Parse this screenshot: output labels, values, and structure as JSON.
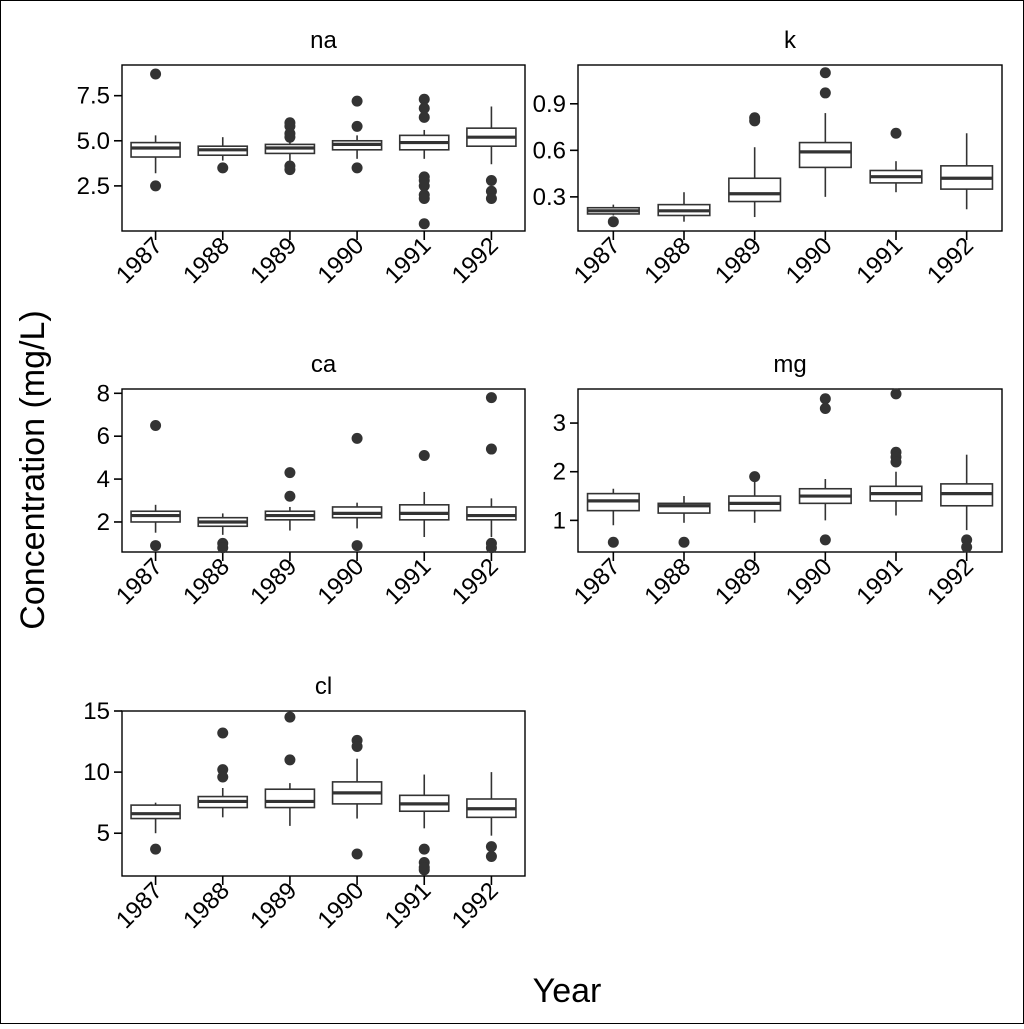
{
  "colors": {
    "box_fill": "#ffffff",
    "box_stroke": "#333333",
    "outlier": "#333333",
    "axis": "#000000",
    "background": "#ffffff"
  },
  "figure": {
    "xlabel": "Year",
    "ylabel": "Concentration (mg/L)"
  },
  "chart_data": [
    {
      "type": "box",
      "title": "na",
      "xlabel": "",
      "ylabel": "",
      "categories": [
        "1987",
        "1988",
        "1989",
        "1990",
        "1991",
        "1992"
      ],
      "ylim": [
        0.0,
        9.2
      ],
      "yticks": [
        2.5,
        5.0,
        7.5
      ],
      "ytick_labels": [
        "2.5",
        "5.0",
        "7.5"
      ],
      "grid": false,
      "legend": "none",
      "boxes": [
        {
          "x": "1987",
          "whislo": 3.2,
          "q1": 4.1,
          "med": 4.6,
          "q3": 4.9,
          "whishi": 5.3,
          "fliers": [
            8.7,
            2.5
          ]
        },
        {
          "x": "1988",
          "whislo": 3.9,
          "q1": 4.2,
          "med": 4.5,
          "q3": 4.7,
          "whishi": 5.2,
          "fliers": [
            3.5
          ]
        },
        {
          "x": "1989",
          "whislo": 3.9,
          "q1": 4.3,
          "med": 4.6,
          "q3": 4.8,
          "whishi": 5.1,
          "fliers": [
            6.0,
            5.8,
            5.4,
            5.2,
            3.6,
            3.4
          ]
        },
        {
          "x": "1990",
          "whislo": 4.0,
          "q1": 4.5,
          "med": 4.8,
          "q3": 5.0,
          "whishi": 5.3,
          "fliers": [
            7.2,
            5.8,
            3.5
          ]
        },
        {
          "x": "1991",
          "whislo": 4.0,
          "q1": 4.5,
          "med": 4.9,
          "q3": 5.3,
          "whishi": 5.6,
          "fliers": [
            7.3,
            6.8,
            6.3,
            3.0,
            2.8,
            2.5,
            2.0,
            1.8,
            0.4
          ]
        },
        {
          "x": "1992",
          "whislo": 3.7,
          "q1": 4.7,
          "med": 5.2,
          "q3": 5.7,
          "whishi": 6.9,
          "fliers": [
            2.8,
            2.2,
            1.8
          ]
        }
      ]
    },
    {
      "type": "box",
      "title": "k",
      "xlabel": "",
      "ylabel": "",
      "categories": [
        "1987",
        "1988",
        "1989",
        "1990",
        "1991",
        "1992"
      ],
      "ylim": [
        0.08,
        1.15
      ],
      "yticks": [
        0.3,
        0.6,
        0.9
      ],
      "ytick_labels": [
        "0.3",
        "0.6",
        "0.9"
      ],
      "grid": false,
      "legend": "none",
      "boxes": [
        {
          "x": "1987",
          "whislo": 0.18,
          "q1": 0.19,
          "med": 0.21,
          "q3": 0.23,
          "whishi": 0.25,
          "fliers": [
            0.14
          ]
        },
        {
          "x": "1988",
          "whislo": 0.14,
          "q1": 0.18,
          "med": 0.21,
          "q3": 0.25,
          "whishi": 0.33,
          "fliers": []
        },
        {
          "x": "1989",
          "whislo": 0.17,
          "q1": 0.27,
          "med": 0.32,
          "q3": 0.42,
          "whishi": 0.62,
          "fliers": [
            0.81,
            0.79
          ]
        },
        {
          "x": "1990",
          "whislo": 0.3,
          "q1": 0.49,
          "med": 0.59,
          "q3": 0.65,
          "whishi": 0.84,
          "fliers": [
            1.1,
            0.97
          ]
        },
        {
          "x": "1991",
          "whislo": 0.33,
          "q1": 0.39,
          "med": 0.43,
          "q3": 0.47,
          "whishi": 0.53,
          "fliers": [
            0.71
          ]
        },
        {
          "x": "1992",
          "whislo": 0.22,
          "q1": 0.35,
          "med": 0.42,
          "q3": 0.5,
          "whishi": 0.71,
          "fliers": []
        }
      ]
    },
    {
      "type": "box",
      "title": "ca",
      "xlabel": "",
      "ylabel": "",
      "categories": [
        "1987",
        "1988",
        "1989",
        "1990",
        "1991",
        "1992"
      ],
      "ylim": [
        0.6,
        8.2
      ],
      "yticks": [
        2,
        4,
        6,
        8
      ],
      "ytick_labels": [
        "2",
        "4",
        "6",
        "8"
      ],
      "grid": false,
      "legend": "none",
      "boxes": [
        {
          "x": "1987",
          "whislo": 1.5,
          "q1": 2.0,
          "med": 2.3,
          "q3": 2.5,
          "whishi": 2.8,
          "fliers": [
            6.5,
            0.9
          ]
        },
        {
          "x": "1988",
          "whislo": 1.4,
          "q1": 1.8,
          "med": 2.0,
          "q3": 2.2,
          "whishi": 2.4,
          "fliers": [
            1.0,
            0.8
          ]
        },
        {
          "x": "1989",
          "whislo": 1.6,
          "q1": 2.1,
          "med": 2.3,
          "q3": 2.5,
          "whishi": 2.7,
          "fliers": [
            4.3,
            3.2
          ]
        },
        {
          "x": "1990",
          "whislo": 1.7,
          "q1": 2.2,
          "med": 2.4,
          "q3": 2.7,
          "whishi": 2.9,
          "fliers": [
            5.9,
            0.9
          ]
        },
        {
          "x": "1991",
          "whislo": 1.3,
          "q1": 2.1,
          "med": 2.4,
          "q3": 2.8,
          "whishi": 3.4,
          "fliers": [
            5.1
          ]
        },
        {
          "x": "1992",
          "whislo": 1.3,
          "q1": 2.1,
          "med": 2.3,
          "q3": 2.7,
          "whishi": 3.1,
          "fliers": [
            7.8,
            5.4,
            1.0,
            0.8
          ]
        }
      ]
    },
    {
      "type": "box",
      "title": "mg",
      "xlabel": "",
      "ylabel": "",
      "categories": [
        "1987",
        "1988",
        "1989",
        "1990",
        "1991",
        "1992"
      ],
      "ylim": [
        0.35,
        3.7
      ],
      "yticks": [
        1,
        2,
        3
      ],
      "ytick_labels": [
        "1",
        "2",
        "3"
      ],
      "grid": false,
      "legend": "none",
      "boxes": [
        {
          "x": "1987",
          "whislo": 0.9,
          "q1": 1.2,
          "med": 1.4,
          "q3": 1.55,
          "whishi": 1.65,
          "fliers": [
            0.55
          ]
        },
        {
          "x": "1988",
          "whislo": 0.95,
          "q1": 1.15,
          "med": 1.3,
          "q3": 1.35,
          "whishi": 1.5,
          "fliers": [
            0.55
          ]
        },
        {
          "x": "1989",
          "whislo": 0.95,
          "q1": 1.2,
          "med": 1.35,
          "q3": 1.5,
          "whishi": 1.85,
          "fliers": [
            1.9
          ]
        },
        {
          "x": "1990",
          "whislo": 1.0,
          "q1": 1.35,
          "med": 1.5,
          "q3": 1.65,
          "whishi": 1.85,
          "fliers": [
            3.5,
            3.3,
            0.6
          ]
        },
        {
          "x": "1991",
          "whislo": 1.1,
          "q1": 1.4,
          "med": 1.55,
          "q3": 1.7,
          "whishi": 2.0,
          "fliers": [
            3.6,
            2.4,
            2.3,
            2.2
          ]
        },
        {
          "x": "1992",
          "whislo": 0.8,
          "q1": 1.3,
          "med": 1.55,
          "q3": 1.75,
          "whishi": 2.35,
          "fliers": [
            0.6,
            0.45
          ]
        }
      ]
    },
    {
      "type": "box",
      "title": "cl",
      "xlabel": "",
      "ylabel": "",
      "categories": [
        "1987",
        "1988",
        "1989",
        "1990",
        "1991",
        "1992"
      ],
      "ylim": [
        1.5,
        15.0
      ],
      "yticks": [
        5,
        10,
        15
      ],
      "ytick_labels": [
        "5",
        "10",
        "15"
      ],
      "grid": false,
      "legend": "none",
      "boxes": [
        {
          "x": "1987",
          "whislo": 5.0,
          "q1": 6.2,
          "med": 6.6,
          "q3": 7.3,
          "whishi": 7.5,
          "fliers": [
            3.7
          ]
        },
        {
          "x": "1988",
          "whislo": 6.3,
          "q1": 7.1,
          "med": 7.6,
          "q3": 8.0,
          "whishi": 8.7,
          "fliers": [
            13.2,
            10.2,
            9.6
          ]
        },
        {
          "x": "1989",
          "whislo": 5.6,
          "q1": 7.1,
          "med": 7.6,
          "q3": 8.6,
          "whishi": 9.1,
          "fliers": [
            14.5,
            11.0
          ]
        },
        {
          "x": "1990",
          "whislo": 6.2,
          "q1": 7.4,
          "med": 8.3,
          "q3": 9.2,
          "whishi": 11.1,
          "fliers": [
            12.6,
            12.1,
            3.3
          ]
        },
        {
          "x": "1991",
          "whislo": 5.4,
          "q1": 6.8,
          "med": 7.4,
          "q3": 8.1,
          "whishi": 9.8,
          "fliers": [
            3.7,
            2.6,
            2.2,
            2.0
          ]
        },
        {
          "x": "1992",
          "whislo": 4.8,
          "q1": 6.3,
          "med": 7.0,
          "q3": 7.8,
          "whishi": 10.0,
          "fliers": [
            3.9,
            3.1
          ]
        }
      ]
    }
  ]
}
